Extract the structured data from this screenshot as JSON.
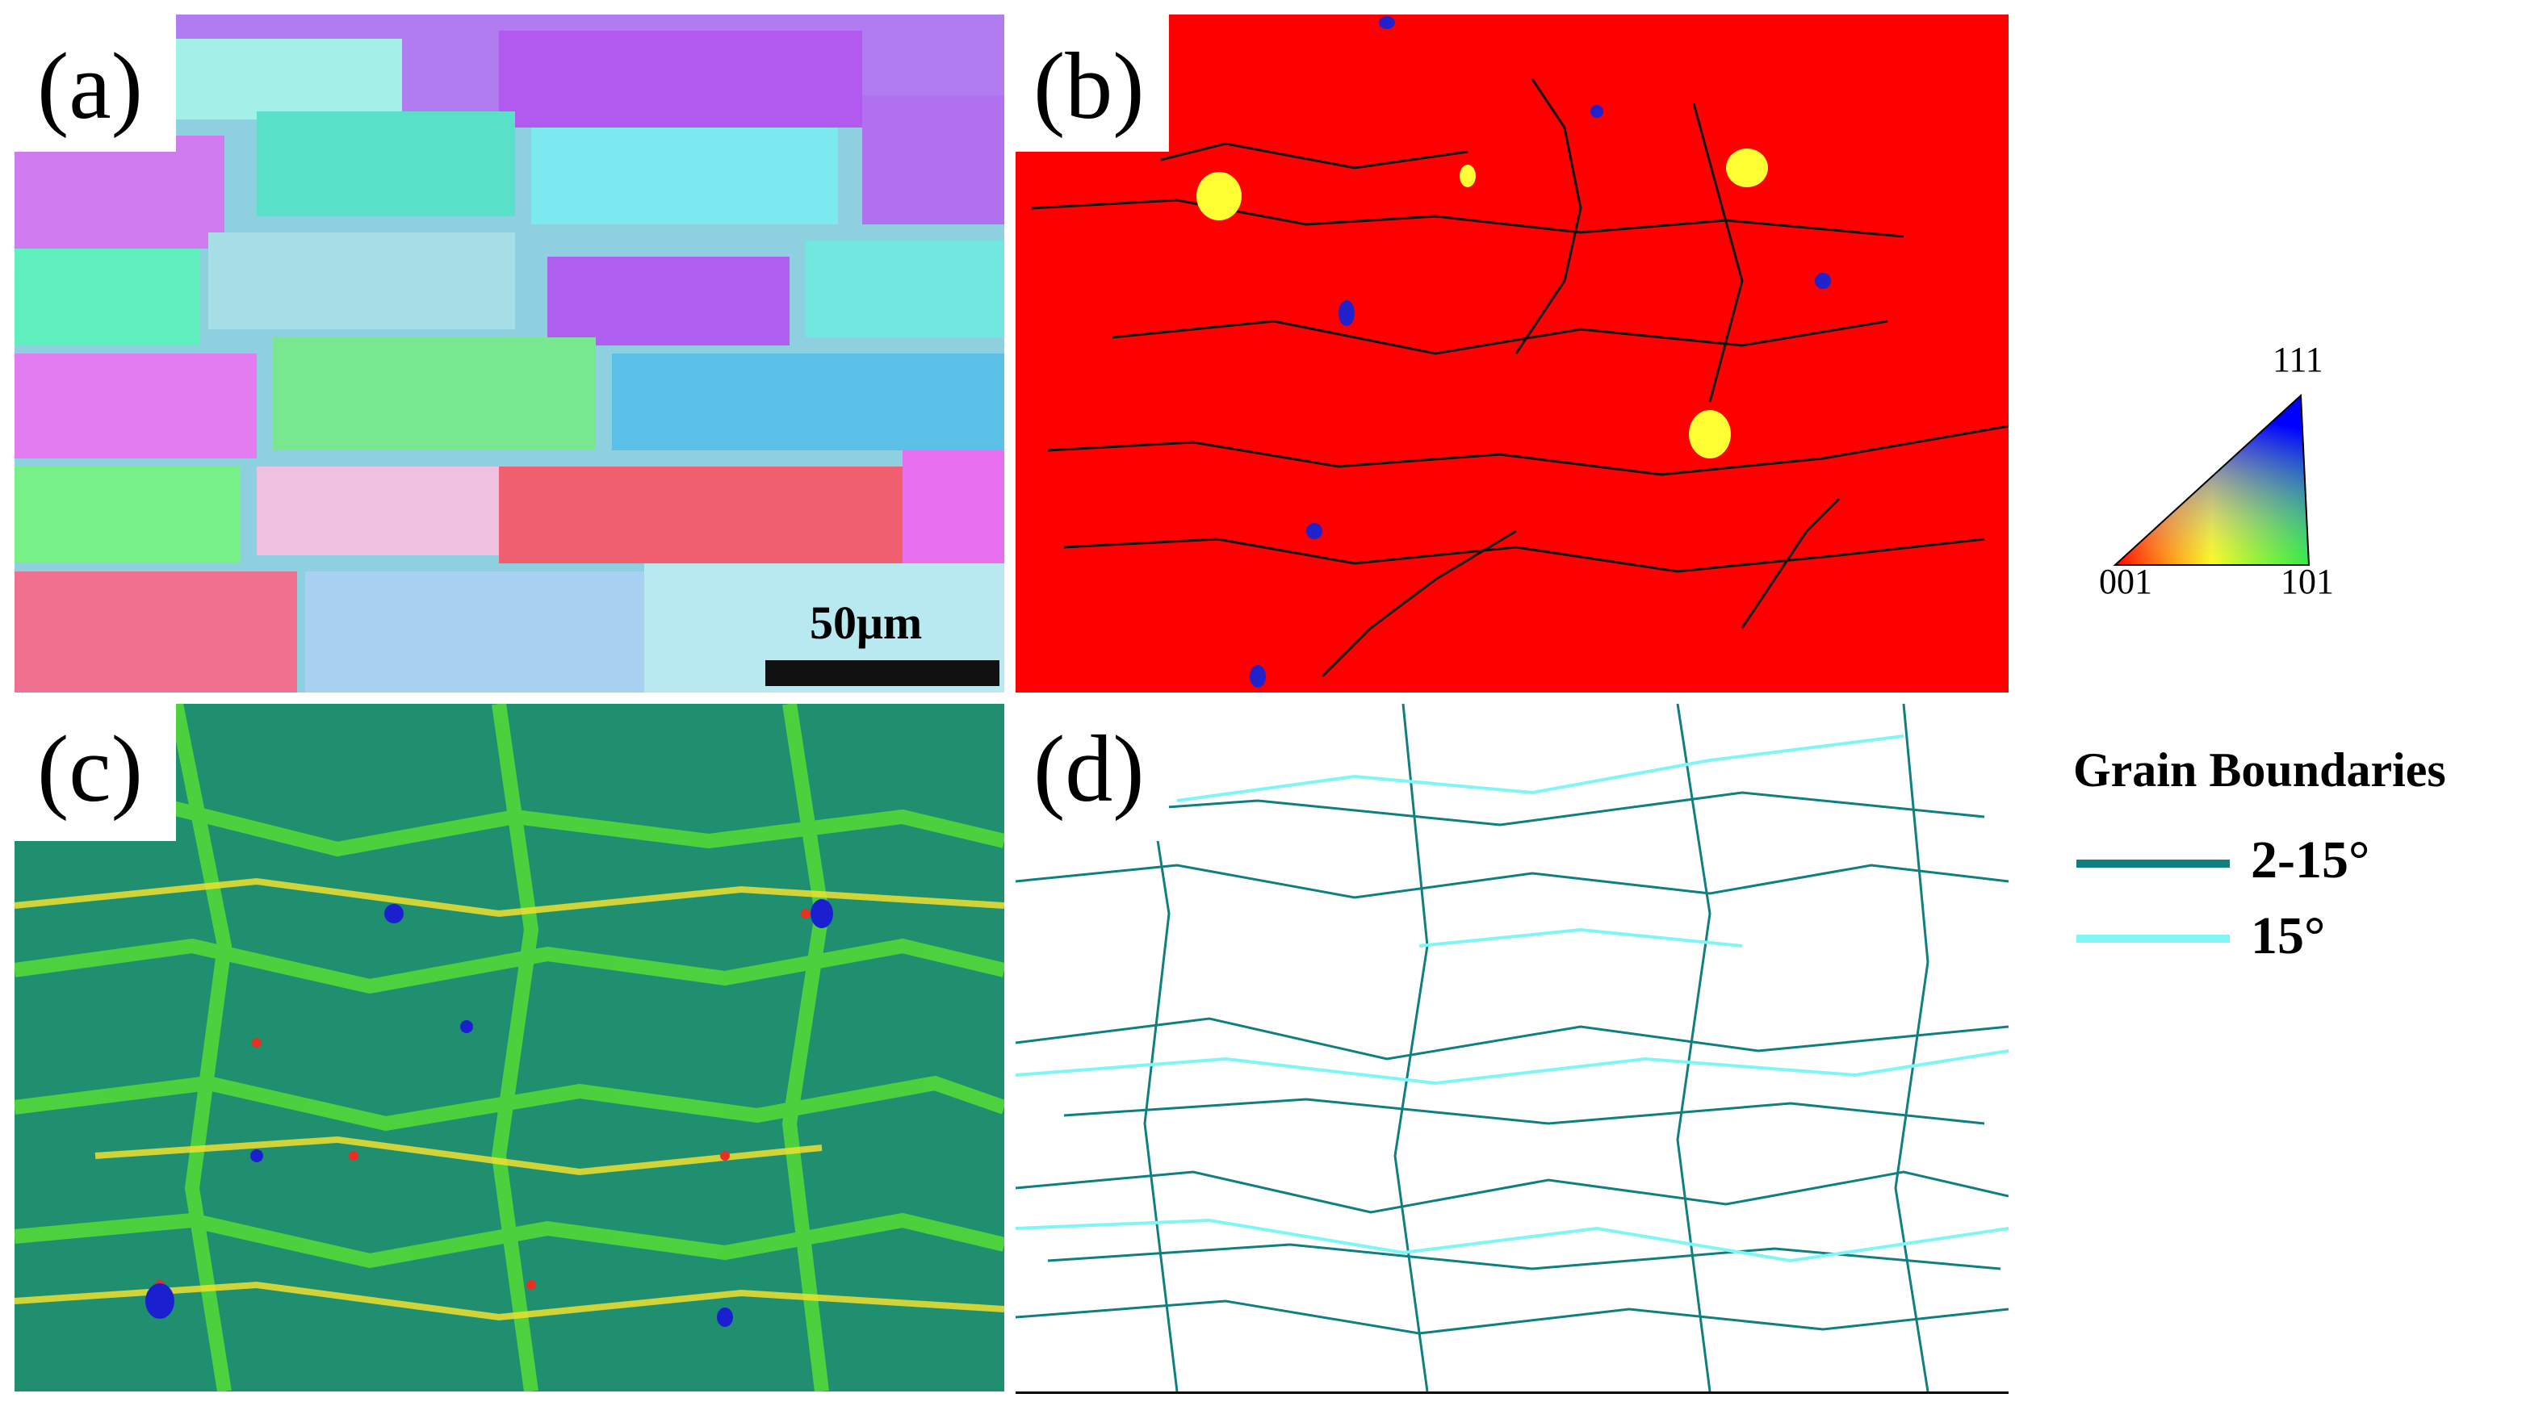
{
  "panels": {
    "a": {
      "label": "(a)",
      "scale_bar": "50μm"
    },
    "b": {
      "label": "(b)"
    },
    "c": {
      "label": "(c)"
    },
    "d": {
      "label": "(d)"
    }
  },
  "ipf_key": {
    "corner_001": "001",
    "corner_101": "101",
    "corner_111": "111"
  },
  "grain_boundaries": {
    "title": "Grain Boundaries",
    "items": [
      {
        "label": "2-15°",
        "color": "#0f7f7f"
      },
      {
        "label": "15°",
        "color": "#7ff5f5"
      }
    ]
  }
}
